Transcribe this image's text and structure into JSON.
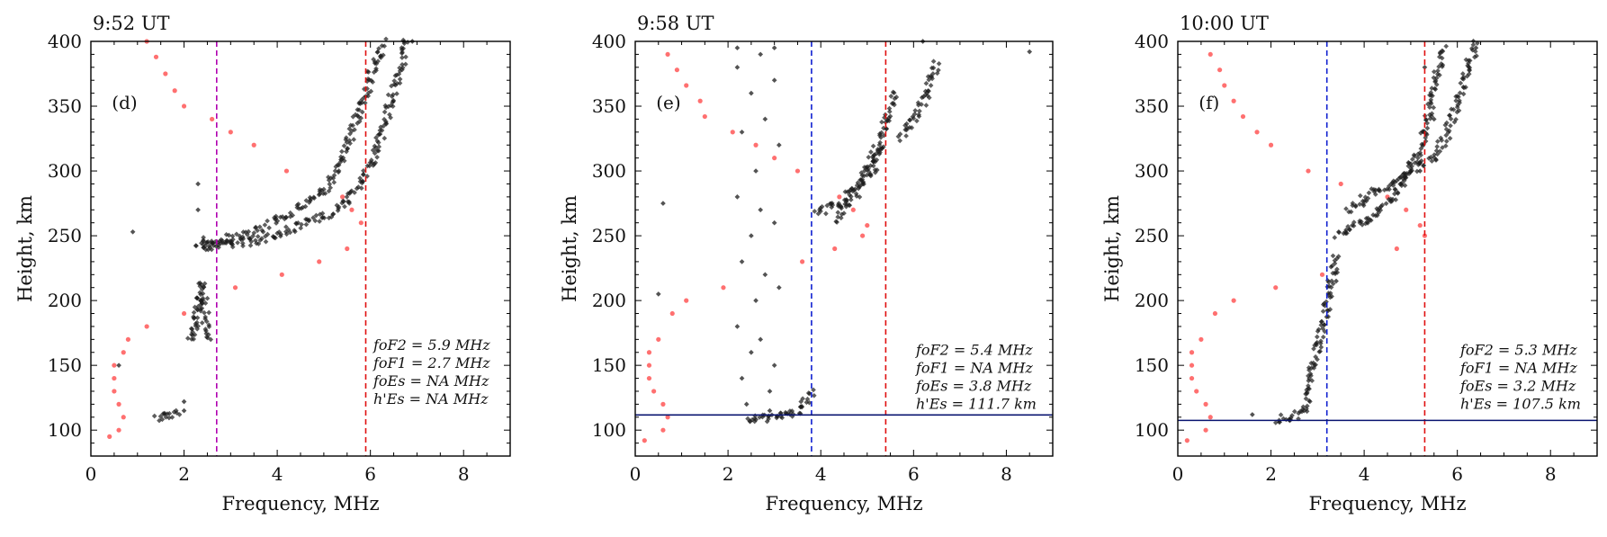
{
  "chart_data": [
    {
      "type": "scatter",
      "title": "9:52 UT",
      "panel_label": "(d)",
      "xlabel": "Frequency, MHz",
      "ylabel": "Height, km",
      "xlim": [
        0,
        9
      ],
      "ylim": [
        80,
        400
      ],
      "xticks": [
        0,
        2,
        4,
        6,
        8
      ],
      "yticks": [
        100,
        150,
        200,
        250,
        300,
        350,
        400
      ],
      "vlines": [
        {
          "x": 2.7,
          "color": "#b000b0",
          "dash": true
        },
        {
          "x": 5.9,
          "color": "#e01010",
          "dash": true
        }
      ],
      "hlines": [],
      "annotations": [
        "foF2 = 5.9 MHz",
        "foF1 = 2.7 MHz",
        "foEs = NA MHz",
        "h'Es = NA MHz"
      ],
      "colors": {
        "trace": "#1a1a1a",
        "reference": "#ff7070"
      },
      "trace_segments": [
        {
          "x": [
            1.4,
            1.6,
            1.8,
            1.9
          ],
          "y": [
            110,
            111,
            112,
            113
          ]
        },
        {
          "x": [
            2.1,
            2.2,
            2.25,
            2.3,
            2.35,
            2.4,
            2.5
          ],
          "y": [
            168,
            175,
            185,
            195,
            205,
            212,
            170
          ]
        },
        {
          "x": [
            2.4,
            2.5,
            2.6,
            2.7,
            3.0,
            3.5,
            4.0,
            4.5,
            5.0,
            5.5,
            5.8,
            6.0,
            6.2,
            6.4,
            6.6,
            6.8
          ],
          "y": [
            240,
            242,
            242,
            243,
            244,
            246,
            250,
            258,
            265,
            275,
            290,
            305,
            325,
            350,
            375,
            400
          ]
        },
        {
          "x": [
            2.3,
            2.4,
            2.5,
            3.0,
            3.5,
            4.0,
            4.5,
            5.0,
            5.3,
            5.5,
            5.7,
            5.9,
            6.1,
            6.3
          ],
          "y": [
            242,
            244,
            246,
            248,
            252,
            262,
            272,
            285,
            300,
            320,
            340,
            360,
            385,
            400
          ]
        }
      ],
      "trace_points": [
        {
          "x": 0.9,
          "y": 253
        },
        {
          "x": 0.6,
          "y": 150
        },
        {
          "x": 2.0,
          "y": 122
        },
        {
          "x": 2.0,
          "y": 115
        },
        {
          "x": 2.3,
          "y": 290
        },
        {
          "x": 2.3,
          "y": 270
        },
        {
          "x": 6.9,
          "y": 400
        }
      ],
      "reference_points": [
        {
          "x": 1.2,
          "y": 400
        },
        {
          "x": 1.4,
          "y": 388
        },
        {
          "x": 1.6,
          "y": 375
        },
        {
          "x": 1.8,
          "y": 362
        },
        {
          "x": 2.0,
          "y": 350
        },
        {
          "x": 2.6,
          "y": 340
        },
        {
          "x": 3.0,
          "y": 330
        },
        {
          "x": 3.5,
          "y": 320
        },
        {
          "x": 4.2,
          "y": 300
        },
        {
          "x": 5.4,
          "y": 280
        },
        {
          "x": 5.6,
          "y": 270
        },
        {
          "x": 5.8,
          "y": 260
        },
        {
          "x": 5.5,
          "y": 240
        },
        {
          "x": 4.9,
          "y": 230
        },
        {
          "x": 4.1,
          "y": 220
        },
        {
          "x": 3.1,
          "y": 210
        },
        {
          "x": 2.0,
          "y": 190
        },
        {
          "x": 1.2,
          "y": 180
        },
        {
          "x": 0.8,
          "y": 170
        },
        {
          "x": 0.7,
          "y": 160
        },
        {
          "x": 0.5,
          "y": 150
        },
        {
          "x": 0.5,
          "y": 140
        },
        {
          "x": 0.5,
          "y": 130
        },
        {
          "x": 0.6,
          "y": 120
        },
        {
          "x": 0.7,
          "y": 110
        },
        {
          "x": 0.6,
          "y": 100
        },
        {
          "x": 0.4,
          "y": 95
        }
      ]
    },
    {
      "type": "scatter",
      "title": "9:58 UT",
      "panel_label": "(e)",
      "xlabel": "Frequency, MHz",
      "ylabel": "Height, km",
      "xlim": [
        0,
        9
      ],
      "ylim": [
        80,
        400
      ],
      "xticks": [
        0,
        2,
        4,
        6,
        8
      ],
      "yticks": [
        100,
        150,
        200,
        250,
        300,
        350,
        400
      ],
      "vlines": [
        {
          "x": 3.8,
          "color": "#1020d0",
          "dash": true
        },
        {
          "x": 5.4,
          "color": "#e01010",
          "dash": true
        }
      ],
      "hlines": [
        {
          "y": 111.7,
          "color": "#0a1470"
        }
      ],
      "annotations": [
        "foF2 = 5.4 MHz",
        "foF1 = NA MHz",
        "foEs = 3.8 MHz",
        "h'Es = 111.7 km"
      ],
      "colors": {
        "trace": "#1a1a1a",
        "reference": "#ff7070"
      },
      "trace_segments": [
        {
          "x": [
            2.4,
            2.6,
            2.8,
            3.0,
            3.2,
            3.4,
            3.6,
            3.8
          ],
          "y": [
            106,
            108,
            109,
            110,
            111,
            113,
            118,
            130
          ]
        },
        {
          "x": [
            3.9,
            4.1,
            4.4,
            4.7,
            5.0,
            5.2,
            5.4,
            5.6
          ],
          "y": [
            268,
            270,
            275,
            285,
            300,
            315,
            335,
            360
          ]
        },
        {
          "x": [
            4.3,
            4.6,
            4.9,
            5.1,
            5.3
          ],
          "y": [
            262,
            275,
            290,
            300,
            320
          ]
        },
        {
          "x": [
            5.7,
            5.9,
            6.1,
            6.3,
            6.5
          ],
          "y": [
            325,
            335,
            345,
            360,
            385
          ]
        }
      ],
      "trace_points": [
        {
          "x": 2.2,
          "y": 380
        },
        {
          "x": 2.3,
          "y": 330
        },
        {
          "x": 2.2,
          "y": 280
        },
        {
          "x": 2.3,
          "y": 230
        },
        {
          "x": 2.2,
          "y": 180
        },
        {
          "x": 2.3,
          "y": 140
        },
        {
          "x": 2.5,
          "y": 360
        },
        {
          "x": 2.6,
          "y": 300
        },
        {
          "x": 2.5,
          "y": 250
        },
        {
          "x": 2.6,
          "y": 200
        },
        {
          "x": 2.5,
          "y": 160
        },
        {
          "x": 2.7,
          "y": 390
        },
        {
          "x": 2.8,
          "y": 340
        },
        {
          "x": 2.7,
          "y": 270
        },
        {
          "x": 2.8,
          "y": 220
        },
        {
          "x": 2.7,
          "y": 170
        },
        {
          "x": 2.9,
          "y": 130
        },
        {
          "x": 3.0,
          "y": 370
        },
        {
          "x": 3.1,
          "y": 320
        },
        {
          "x": 3.0,
          "y": 260
        },
        {
          "x": 3.1,
          "y": 210
        },
        {
          "x": 3.0,
          "y": 150
        },
        {
          "x": 2.4,
          "y": 120
        },
        {
          "x": 2.9,
          "y": 115
        },
        {
          "x": 3.0,
          "y": 395
        },
        {
          "x": 2.2,
          "y": 395
        },
        {
          "x": 0.6,
          "y": 275
        },
        {
          "x": 0.5,
          "y": 205
        },
        {
          "x": 8.5,
          "y": 392
        },
        {
          "x": 6.2,
          "y": 400
        }
      ],
      "reference_points": [
        {
          "x": 0.7,
          "y": 390
        },
        {
          "x": 0.9,
          "y": 378
        },
        {
          "x": 1.1,
          "y": 366
        },
        {
          "x": 1.4,
          "y": 354
        },
        {
          "x": 1.5,
          "y": 342
        },
        {
          "x": 2.1,
          "y": 330
        },
        {
          "x": 2.6,
          "y": 320
        },
        {
          "x": 3.0,
          "y": 310
        },
        {
          "x": 3.5,
          "y": 300
        },
        {
          "x": 4.4,
          "y": 280
        },
        {
          "x": 4.7,
          "y": 270
        },
        {
          "x": 5.0,
          "y": 258
        },
        {
          "x": 4.9,
          "y": 250
        },
        {
          "x": 4.3,
          "y": 240
        },
        {
          "x": 3.6,
          "y": 230
        },
        {
          "x": 1.9,
          "y": 210
        },
        {
          "x": 1.1,
          "y": 200
        },
        {
          "x": 0.8,
          "y": 190
        },
        {
          "x": 0.5,
          "y": 170
        },
        {
          "x": 0.3,
          "y": 160
        },
        {
          "x": 0.3,
          "y": 150
        },
        {
          "x": 0.3,
          "y": 140
        },
        {
          "x": 0.4,
          "y": 130
        },
        {
          "x": 0.6,
          "y": 120
        },
        {
          "x": 0.7,
          "y": 110
        },
        {
          "x": 0.6,
          "y": 100
        },
        {
          "x": 0.2,
          "y": 92
        }
      ]
    },
    {
      "type": "scatter",
      "title": "10:00 UT",
      "panel_label": "(f)",
      "xlabel": "Frequency, MHz",
      "ylabel": "Height, km",
      "xlim": [
        0,
        9
      ],
      "ylim": [
        80,
        400
      ],
      "xticks": [
        0,
        2,
        4,
        6,
        8
      ],
      "yticks": [
        100,
        150,
        200,
        250,
        300,
        350,
        400
      ],
      "vlines": [
        {
          "x": 3.2,
          "color": "#1020d0",
          "dash": true
        },
        {
          "x": 5.3,
          "color": "#e01010",
          "dash": true
        }
      ],
      "hlines": [
        {
          "y": 107.5,
          "color": "#0a1470"
        }
      ],
      "annotations": [
        "foF2 = 5.3 MHz",
        "foF1 = NA MHz",
        "foEs = 3.2 MHz",
        "h'Es = 107.5 km"
      ],
      "colors": {
        "trace": "#1a1a1a",
        "reference": "#ff7070"
      },
      "trace_segments": [
        {
          "x": [
            2.1,
            2.3,
            2.5,
            2.7,
            2.8,
            2.9,
            3.0,
            3.1,
            3.2,
            3.3,
            3.4
          ],
          "y": [
            108,
            109,
            110,
            115,
            130,
            150,
            165,
            180,
            195,
            215,
            235
          ]
        },
        {
          "x": [
            3.4,
            3.6,
            3.8,
            4.0,
            4.3,
            4.6,
            4.9,
            5.1,
            5.3,
            5.5,
            5.7
          ],
          "y": [
            250,
            255,
            258,
            260,
            268,
            280,
            295,
            310,
            330,
            360,
            395
          ]
        },
        {
          "x": [
            3.6,
            3.9,
            4.2,
            4.6,
            4.9,
            5.2,
            5.5,
            5.8,
            6.0,
            6.2,
            6.4
          ],
          "y": [
            270,
            275,
            285,
            290,
            300,
            305,
            310,
            330,
            350,
            375,
            400
          ]
        }
      ],
      "trace_points": [
        {
          "x": 1.6,
          "y": 112
        },
        {
          "x": 5.3,
          "y": 380
        },
        {
          "x": 5.5,
          "y": 340
        },
        {
          "x": 5.2,
          "y": 300
        },
        {
          "x": 6.4,
          "y": 395
        },
        {
          "x": 3.4,
          "y": 215
        }
      ],
      "reference_points": [
        {
          "x": 0.7,
          "y": 390
        },
        {
          "x": 0.9,
          "y": 378
        },
        {
          "x": 1.0,
          "y": 366
        },
        {
          "x": 1.2,
          "y": 354
        },
        {
          "x": 1.4,
          "y": 342
        },
        {
          "x": 1.7,
          "y": 330
        },
        {
          "x": 2.0,
          "y": 320
        },
        {
          "x": 2.8,
          "y": 300
        },
        {
          "x": 3.5,
          "y": 290
        },
        {
          "x": 4.5,
          "y": 280
        },
        {
          "x": 4.9,
          "y": 270
        },
        {
          "x": 5.2,
          "y": 258
        },
        {
          "x": 5.3,
          "y": 250
        },
        {
          "x": 4.7,
          "y": 240
        },
        {
          "x": 3.1,
          "y": 220
        },
        {
          "x": 2.1,
          "y": 210
        },
        {
          "x": 1.2,
          "y": 200
        },
        {
          "x": 0.8,
          "y": 190
        },
        {
          "x": 0.5,
          "y": 170
        },
        {
          "x": 0.3,
          "y": 160
        },
        {
          "x": 0.3,
          "y": 150
        },
        {
          "x": 0.3,
          "y": 140
        },
        {
          "x": 0.4,
          "y": 130
        },
        {
          "x": 0.6,
          "y": 120
        },
        {
          "x": 0.7,
          "y": 110
        },
        {
          "x": 0.6,
          "y": 100
        },
        {
          "x": 0.2,
          "y": 92
        }
      ]
    }
  ]
}
